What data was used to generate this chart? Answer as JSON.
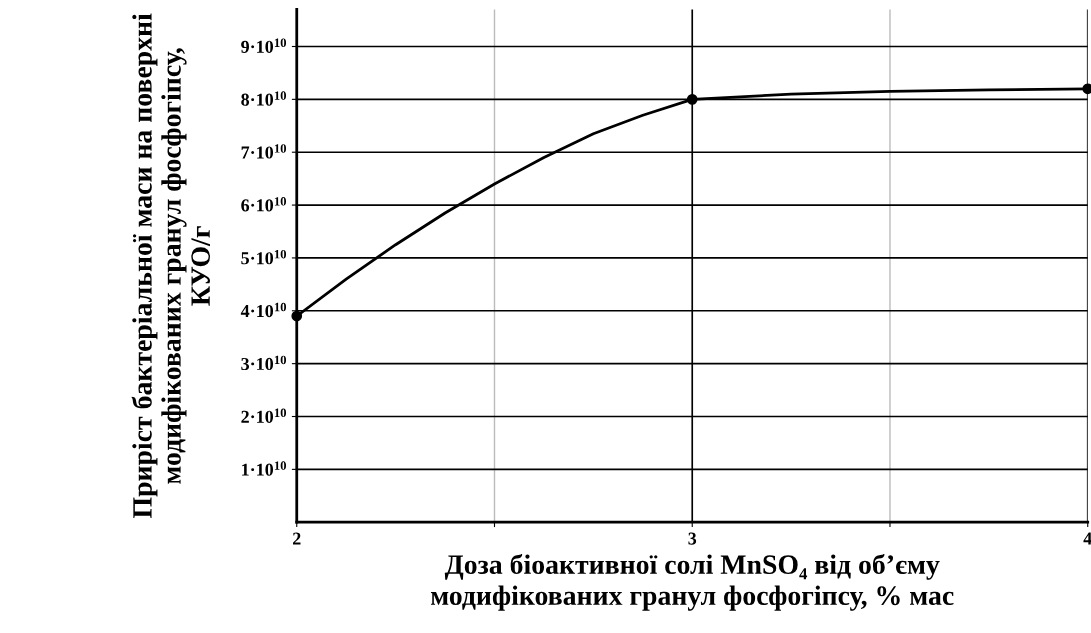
{
  "chart_data": {
    "type": "line",
    "xlabel": "Доза біоактивної солі MnSO₄ від об’єму\nмодифікованих гранул фосфогіпсу, % мас",
    "ylabel": "Приріст бактеріальної маси на поверхні\nмодифікованих гранул фосфогіпсу,\nКУО/г",
    "series": [
      {
        "color": "#000000",
        "marker": "none",
        "x": [
          2,
          2.125,
          2.25,
          2.375,
          2.5,
          2.625,
          2.75,
          2.875,
          3,
          3.25,
          3.5,
          3.75,
          4
        ],
        "values": [
          39000000000.0,
          46000000000.0,
          52500000000.0,
          58500000000.0,
          64000000000.0,
          69000000000.0,
          73500000000.0,
          77000000000.0,
          80000000000.0,
          81000000000.0,
          81500000000.0,
          81800000000.0,
          82000000000.0
        ]
      },
      {
        "type": "scatter",
        "color": "#000000",
        "marker": "circle",
        "x": [
          2,
          3,
          4
        ],
        "values": [
          39000000000.0,
          80000000000.0,
          82000000000.0
        ]
      }
    ],
    "xlim": [
      2,
      4
    ],
    "ylim": [
      0,
      97000000000.0
    ],
    "xticks": [
      2,
      {
        "value": 2.5,
        "label": null
      },
      3,
      {
        "value": 3.5,
        "label": null
      },
      4
    ],
    "yticks": [
      {
        "value": 10000000000.0,
        "label": "1·10$^{10}$"
      },
      {
        "value": 20000000000.0,
        "label": "2·10$^{10}$"
      },
      {
        "value": 30000000000.0,
        "label": "3·10$^{10}$"
      },
      {
        "value": 40000000000.0,
        "label": "4·10$^{10}$"
      },
      {
        "value": 50000000000.0,
        "label": "5·10$^{10}$"
      },
      {
        "value": 60000000000.0,
        "label": "6·10$^{10}$"
      },
      {
        "value": 70000000000.0,
        "label": "7·10$^{10}$"
      },
      {
        "value": 80000000000.0,
        "label": "8·10$^{10}$"
      },
      {
        "value": 90000000000.0,
        "label": "9·10$^{10}$"
      }
    ],
    "grid": true,
    "legend": false
  }
}
